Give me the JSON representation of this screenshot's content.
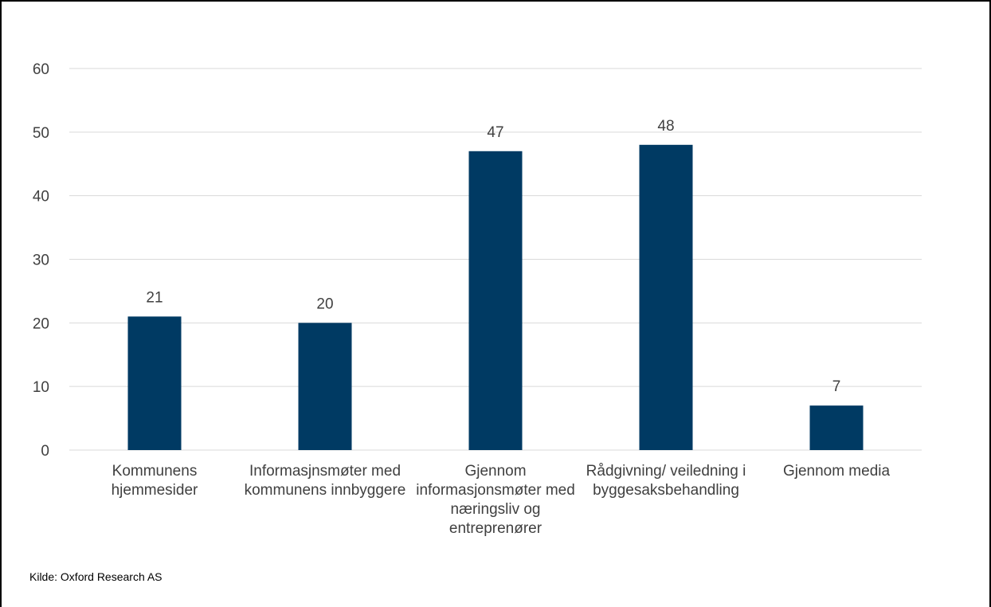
{
  "chart_data": {
    "type": "bar",
    "categories": [
      [
        "Kommunens",
        "hjemmesider"
      ],
      [
        "Informasjnsmøter med",
        "kommunens innbyggere"
      ],
      [
        "Gjennom",
        "informasjonsmøter med",
        "næringsliv og",
        "entreprenører"
      ],
      [
        "Rådgivning/ veiledning i",
        "byggesaksbehandling"
      ],
      [
        "Gjennom media"
      ]
    ],
    "values": [
      21,
      20,
      47,
      48,
      7
    ],
    "value_labels": [
      "21",
      "20",
      "47",
      "48",
      "7"
    ],
    "title": "",
    "xlabel": "",
    "ylabel": "",
    "ylim": [
      0,
      60
    ],
    "yticks": [
      0,
      10,
      20,
      30,
      40,
      50,
      60
    ],
    "ytick_labels": [
      "0",
      "10",
      "20",
      "30",
      "40",
      "50",
      "60"
    ],
    "grid": true,
    "legend": "none",
    "bar_color": "#003A63",
    "grid_color": "#D9D9D9"
  },
  "source": "Kilde: Oxford Research AS"
}
